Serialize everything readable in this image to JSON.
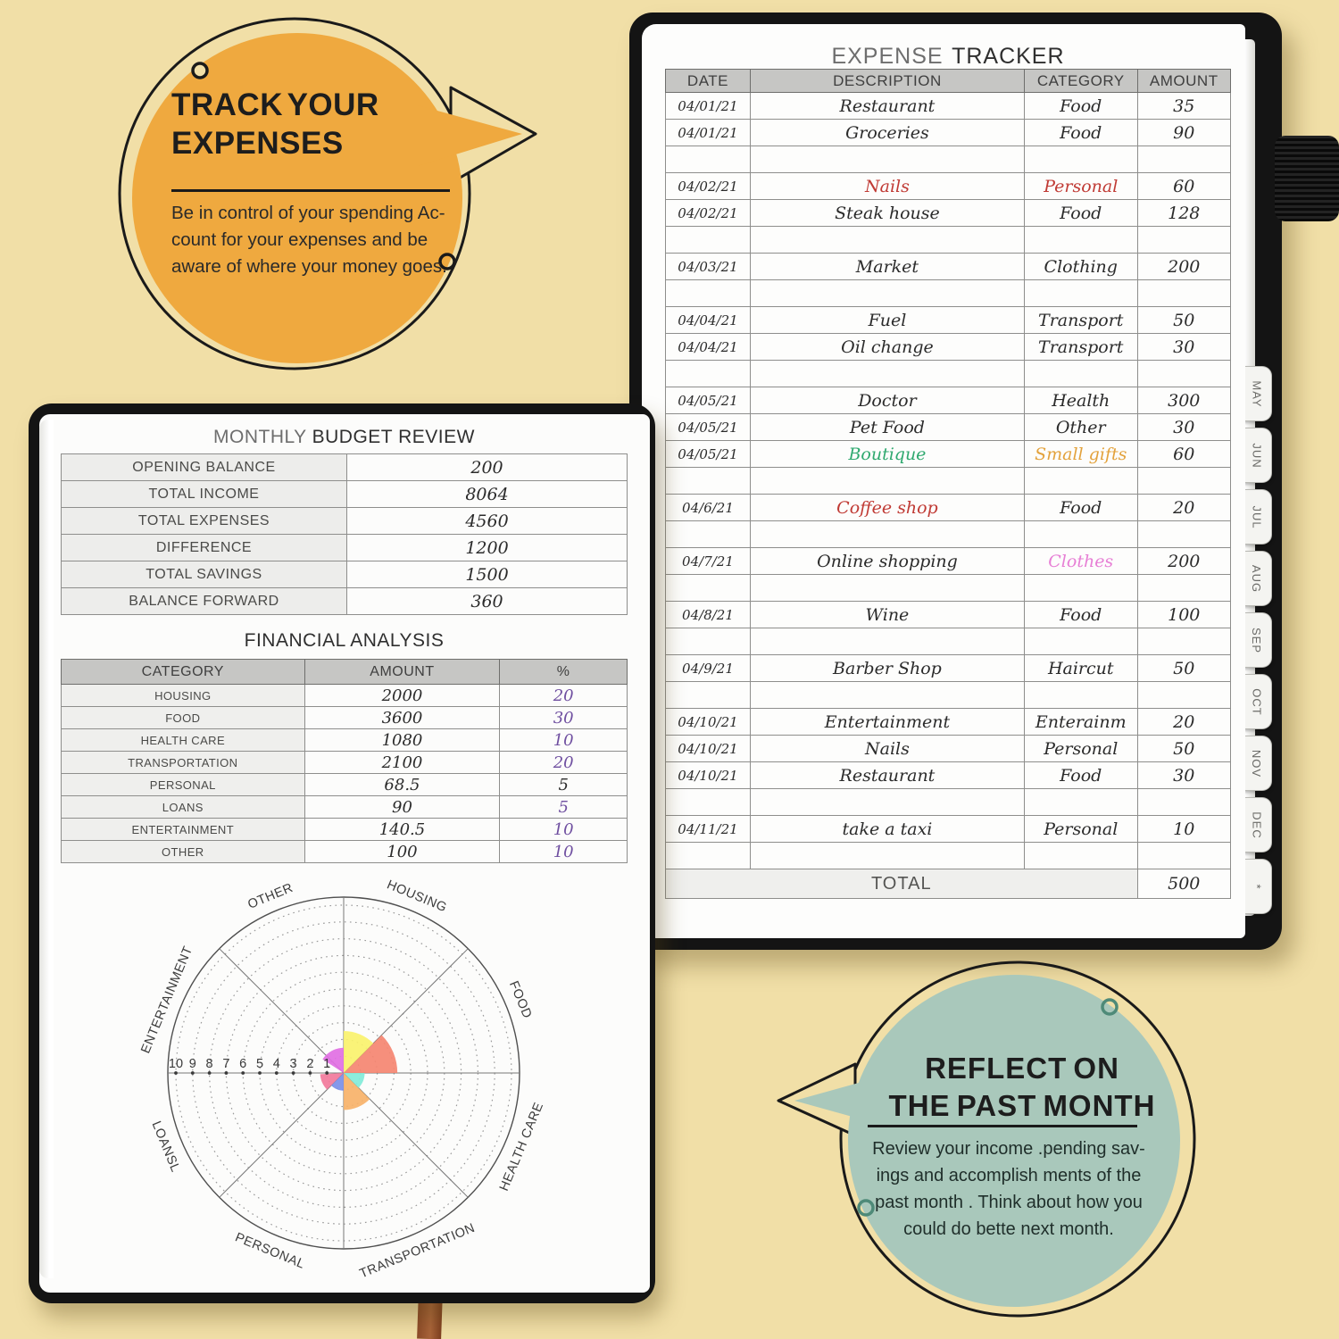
{
  "scene": {
    "background": "#F1DFA7",
    "cover_color": "#141414"
  },
  "bubble_track": {
    "fill": "#EFA93F",
    "title_line1": "TRACK YOUR",
    "title_line2": "EXPENSES",
    "body_lines": [
      "Be in control of your spending Ac-",
      "count for your expenses and be",
      "aware of where your money goes."
    ]
  },
  "bubble_reflect": {
    "fill": "#A9C8BB",
    "title_line1": "REFLECT ON",
    "title_line2": "THE PAST MONTH",
    "body_lines": [
      "Review your income .pending sav-",
      "ings and accomplish ments of the",
      "past month . Think about how you",
      "could do bette next month."
    ]
  },
  "tabs": [
    "MAY",
    "JUN",
    "JUL",
    "AUG",
    "SEP",
    "OCT",
    "NOV",
    "DEC",
    "*"
  ],
  "tracker": {
    "title_part1": "EXPENSE",
    "title_part2": "TRACKER",
    "columns": [
      "DATE",
      "DESCRIPTION",
      "CATEGORY",
      "AMOUNT"
    ],
    "rows": [
      {
        "date": "04/01/21",
        "desc": "Restaurant",
        "cat": "Food",
        "amt": "35"
      },
      {
        "date": "04/01/21",
        "desc": "Groceries",
        "cat": "Food",
        "amt": "90"
      },
      {},
      {
        "date": "04/02/21",
        "desc": "Nails",
        "cat": "Personal",
        "amt": "60",
        "desc_color": "#C03A34",
        "cat_color": "#C03A34"
      },
      {
        "date": "04/02/21",
        "desc": "Steak house",
        "cat": "Food",
        "amt": "128"
      },
      {},
      {
        "date": "04/03/21",
        "desc": "Market",
        "cat": "Clothing",
        "amt": "200"
      },
      {},
      {
        "date": "04/04/21",
        "desc": "Fuel",
        "cat": "Transport",
        "amt": "50"
      },
      {
        "date": "04/04/21",
        "desc": "Oil change",
        "cat": "Transport",
        "amt": "30"
      },
      {},
      {
        "date": "04/05/21",
        "desc": "Doctor",
        "cat": "Health",
        "amt": "300"
      },
      {
        "date": "04/05/21",
        "desc": "Pet Food",
        "cat": "Other",
        "amt": "30"
      },
      {
        "date": "04/05/21",
        "desc": "Boutique",
        "cat": "Small gifts",
        "amt": "60",
        "desc_color": "#2FA96F",
        "cat_color": "#E3A23C"
      },
      {},
      {
        "date": "04/6/21",
        "desc": "Coffee shop",
        "cat": "Food",
        "amt": "20",
        "desc_color": "#C03A34"
      },
      {},
      {
        "date": "04/7/21",
        "desc": "Online shopping",
        "cat": "Clothes",
        "amt": "200",
        "cat_color": "#E77FD5"
      },
      {},
      {
        "date": "04/8/21",
        "desc": "Wine",
        "cat": "Food",
        "amt": "100"
      },
      {},
      {
        "date": "04/9/21",
        "desc": "Barber Shop",
        "cat": "Haircut",
        "amt": "50"
      },
      {},
      {
        "date": "04/10/21",
        "desc": "Entertainment",
        "cat": "Enterainm",
        "amt": "20"
      },
      {
        "date": "04/10/21",
        "desc": "Nails",
        "cat": "Personal",
        "amt": "50"
      },
      {
        "date": "04/10/21",
        "desc": "Restaurant",
        "cat": "Food",
        "amt": "30"
      },
      {},
      {
        "date": "04/11/21",
        "desc": "take a taxi",
        "cat": "Personal",
        "amt": "10"
      },
      {}
    ],
    "total_label": "TOTAL",
    "total_amount": "500"
  },
  "budget": {
    "title_part1": "MONTHLY",
    "title_part2": "BUDGET REVIEW",
    "rows": [
      {
        "label": "OPENING BALANCE",
        "value": "200"
      },
      {
        "label": "TOTAL INCOME",
        "value": "8064"
      },
      {
        "label": "TOTAL EXPENSES",
        "value": "4560"
      },
      {
        "label": "DIFFERENCE",
        "value": "1200"
      },
      {
        "label": "TOTAL SAVINGS",
        "value": "1500"
      },
      {
        "label": "BALANCE FORWARD",
        "value": "360"
      }
    ]
  },
  "analysis": {
    "title": "FINANCIAL ANALYSIS",
    "columns": [
      "CATEGORY",
      "AMOUNT",
      "%"
    ],
    "pct_color": "#6F4FA0",
    "rows": [
      {
        "category": "HOUSING",
        "amount": "2000",
        "pct": "20",
        "pct_color": "#6F4FA0"
      },
      {
        "category": "FOOD",
        "amount": "3600",
        "pct": "30",
        "pct_color": "#6F4FA0"
      },
      {
        "category": "HEALTH CARE",
        "amount": "1080",
        "pct": "10",
        "pct_color": "#6F4FA0"
      },
      {
        "category": "TRANSPORTATION",
        "amount": "2100",
        "pct": "20",
        "pct_color": "#6F4FA0"
      },
      {
        "category": "PERSONAL",
        "amount": "68.5",
        "pct": "5",
        "pct_color": "#2B2B2B"
      },
      {
        "category": "LOANS",
        "amount": "90",
        "pct": "5",
        "pct_color": "#6F4FA0"
      },
      {
        "category": "ENTERTAINMENT",
        "amount": "140.5",
        "pct": "10",
        "pct_color": "#6F4FA0"
      },
      {
        "category": "OTHER",
        "amount": "100",
        "pct": "10",
        "pct_color": "#6F4FA0"
      }
    ]
  },
  "chart_data": {
    "type": "polar-rose",
    "title": "",
    "r_max": 10,
    "scale_ticks": [
      "10",
      "9",
      "8",
      "7",
      "6",
      "5",
      "4",
      "3",
      "2",
      "1"
    ],
    "grid": "dotted concentric rings with 8 spokes, radial ticks 1-10 on west axis",
    "labels": [
      {
        "text": "HOUSING",
        "angle": 67.5,
        "rot": 22.5
      },
      {
        "text": "FOOD",
        "angle": 22.5,
        "rot": 67.5
      },
      {
        "text": "HEALTH CARE",
        "angle": -22.5,
        "rot": -67.5
      },
      {
        "text": "TRANSPORTATION",
        "angle": -67.5,
        "rot": -22.5
      },
      {
        "text": "PERSONAL",
        "angle": -112.5,
        "rot": 22.5
      },
      {
        "text": "LOANSL",
        "angle": -157.5,
        "rot": 67.5
      },
      {
        "text": "ENTERTAINMENT",
        "angle": 157.5,
        "rot": -67.5
      },
      {
        "text": "OTHER",
        "angle": 112.5,
        "rot": -22.5
      }
    ],
    "wedges": [
      {
        "category": "FOOD",
        "start": 0,
        "end": 45,
        "value": 3.2,
        "color": "#F58571"
      },
      {
        "category": "HOUSING",
        "start": 45,
        "end": 90,
        "value": 2.5,
        "color": "#FAF26D"
      },
      {
        "category": "OTHER",
        "start": 90,
        "end": 147,
        "value": 1.5,
        "color": "#E16FE3"
      },
      {
        "category": "LOANS",
        "start": 183,
        "end": 225,
        "value": 1.4,
        "color": "#F2799B"
      },
      {
        "category": "PERSONAL",
        "start": 225,
        "end": 270,
        "value": 1.05,
        "color": "#7B8FE8"
      },
      {
        "category": "TRANSPORTATION",
        "start": 270,
        "end": 315,
        "value": 2.2,
        "color": "#F7B269"
      },
      {
        "category": "HEALTH CARE",
        "start": 315,
        "end": 360,
        "value": 1.25,
        "color": "#82EBD9"
      }
    ]
  }
}
